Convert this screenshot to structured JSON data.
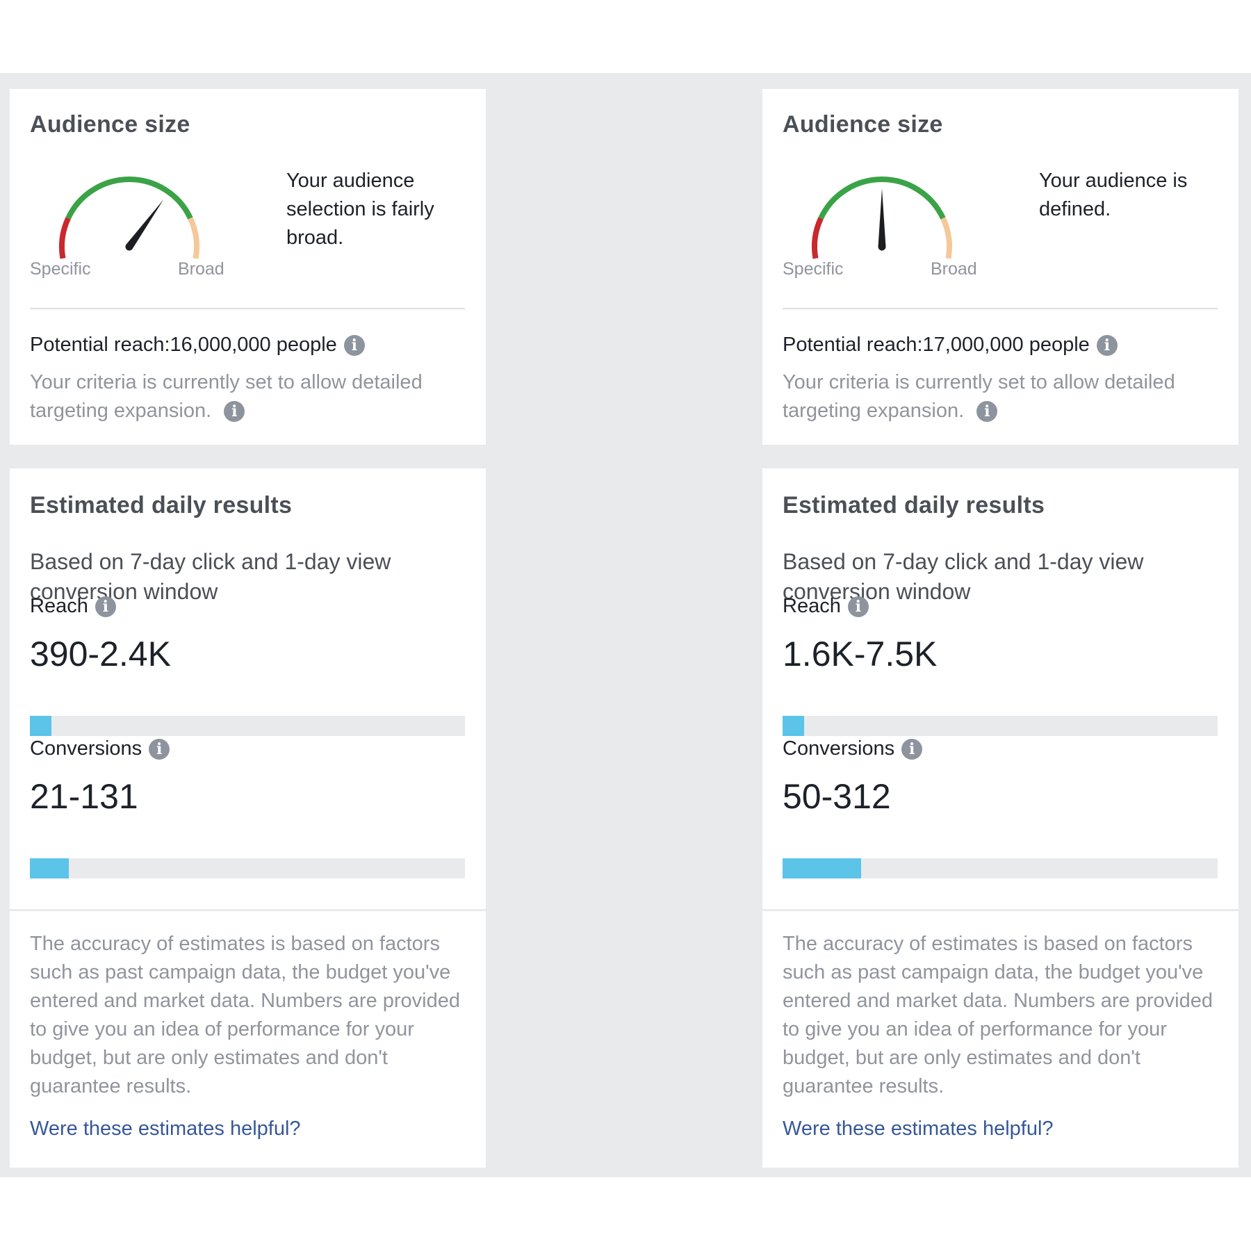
{
  "panels": [
    {
      "audience": {
        "title": "Audience size",
        "description": "Your audience selection is fairly broad.",
        "gauge_min_label": "Specific",
        "gauge_max_label": "Broad",
        "gauge_level": 0.68,
        "potential_reach": "Potential reach:16,000,000 people",
        "criteria": "Your criteria is currently set to allow detailed targeting expansion."
      },
      "estimates": {
        "title": "Estimated daily results",
        "basis": "Based on 7-day click and 1-day view conversion window",
        "reach_label": "Reach",
        "reach_value": "390-2.4K",
        "reach_fill": 0.05,
        "conversions_label": "Conversions",
        "conversions_value": "21-131",
        "conversions_fill": 0.09,
        "disclaimer": "The accuracy of estimates is based on factors such as past campaign data, the budget you've entered and market data. Numbers are provided to give you an idea of performance for your budget, but are only estimates and don't guarantee results.",
        "feedback_link": "Were these estimates helpful?"
      }
    },
    {
      "audience": {
        "title": "Audience size",
        "description": "Your audience is defined.",
        "gauge_min_label": "Specific",
        "gauge_max_label": "Broad",
        "gauge_level": 0.5,
        "potential_reach": "Potential reach:17,000,000 people",
        "criteria": "Your criteria is currently set to allow detailed targeting expansion."
      },
      "estimates": {
        "title": "Estimated daily results",
        "basis": "Based on 7-day click and 1-day view conversion window",
        "reach_label": "Reach",
        "reach_value": "1.6K-7.5K",
        "reach_fill": 0.05,
        "conversions_label": "Conversions",
        "conversions_value": "50-312",
        "conversions_fill": 0.18,
        "disclaimer": "The accuracy of estimates is based on factors such as past campaign data, the budget you've entered and market data. Numbers are provided to give you an idea of performance for your budget, but are only estimates and don't guarantee results.",
        "feedback_link": "Were these estimates helpful?"
      }
    }
  ],
  "colors": {
    "gauge_red": "#c9282d",
    "gauge_green": "#3aa346",
    "gauge_peach": "#f5c89a",
    "needle": "#1c1e21",
    "bar_fill": "#5bc4e8",
    "link": "#365899"
  },
  "icons": {
    "info": "info-icon"
  }
}
